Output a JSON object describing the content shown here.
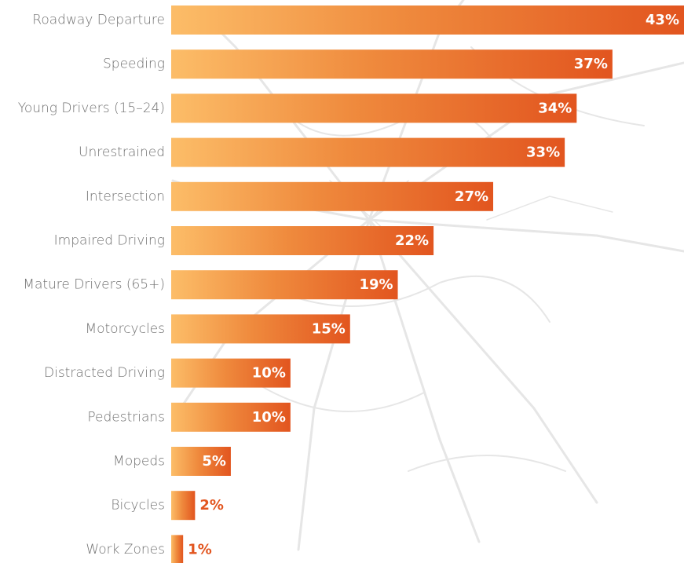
{
  "chart_data": {
    "type": "bar",
    "orientation": "horizontal",
    "categories": [
      "Roadway Departure",
      "Speeding",
      "Young Drivers (15–24)",
      "Unrestrained",
      "Intersection",
      "Impaired Driving",
      "Mature Drivers (65+)",
      "Motorcycles",
      "Distracted Driving",
      "Pedestrians",
      "Mopeds",
      "Bicycles",
      "Work Zones"
    ],
    "values": [
      43,
      37,
      34,
      33,
      27,
      22,
      19,
      15,
      10,
      10,
      5,
      2,
      1
    ],
    "value_labels": [
      "43%",
      "37%",
      "34%",
      "33%",
      "27%",
      "22%",
      "19%",
      "15%",
      "10%",
      "10%",
      "5%",
      "2%",
      "1%"
    ],
    "unit": "%",
    "xlim": [
      0,
      43
    ],
    "grid": false,
    "legend": "none",
    "background": "cracked-glass",
    "colors": {
      "gradient_start": "#fcbd68",
      "gradient_end": "#e2551f",
      "label_inside": "#ffffff",
      "label_outside": "#e2551f",
      "category_text": "#707070"
    }
  }
}
